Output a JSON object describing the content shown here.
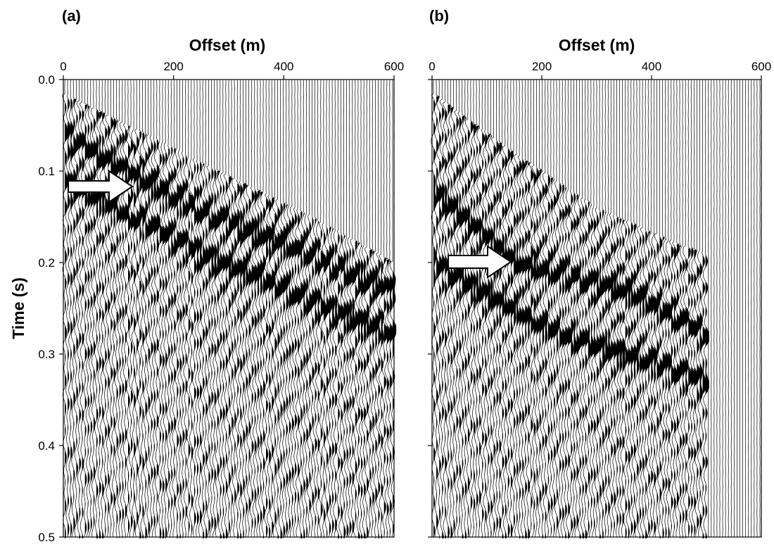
{
  "chart_data": [
    {
      "type": "heatmap",
      "panel_label": "(a)",
      "title": "",
      "xlabel": "Offset (m)",
      "ylabel": "Time (s)",
      "xlim": [
        0,
        600
      ],
      "ylim": [
        0.5,
        0.0
      ],
      "xticks": [
        "0",
        "200",
        "400",
        "600"
      ],
      "yticks": [
        "0.0",
        "0.1",
        "0.2",
        "0.3",
        "0.4",
        "0.5"
      ],
      "max_offset_with_data": 600,
      "first_break_time_s": {
        "offset_m": [
          0,
          150,
          300,
          450,
          600
        ],
        "time_s": [
          0.015,
          0.06,
          0.105,
          0.15,
          0.2
        ]
      },
      "dominant_events": [
        {
          "offset_m": [
            0,
            200,
            600
          ],
          "time_s": [
            0.06,
            0.13,
            0.23
          ]
        },
        {
          "offset_m": [
            0,
            250,
            600
          ],
          "time_s": [
            0.11,
            0.19,
            0.28
          ]
        }
      ],
      "annotation": {
        "type": "arrow",
        "points_at_offset_m": 125,
        "points_at_time_s": 0.12
      },
      "colors": {
        "wiggle": "#000000",
        "background": "#ffffff"
      }
    },
    {
      "type": "heatmap",
      "panel_label": "(b)",
      "title": "",
      "xlabel": "Offset (m)",
      "ylabel": "",
      "xlim": [
        0,
        600
      ],
      "ylim": [
        0.5,
        0.0
      ],
      "xticks": [
        "0",
        "200",
        "400",
        "600"
      ],
      "yticks": [],
      "max_offset_with_data": 500,
      "first_break_time_s": {
        "offset_m": [
          0,
          150,
          300,
          450,
          500
        ],
        "time_s": [
          0.015,
          0.08,
          0.14,
          0.18,
          0.19
        ]
      },
      "dominant_events": [
        {
          "offset_m": [
            0,
            150,
            350,
            500
          ],
          "time_s": [
            0.12,
            0.2,
            0.23,
            0.28
          ]
        },
        {
          "offset_m": [
            0,
            200,
            500
          ],
          "time_s": [
            0.2,
            0.27,
            0.33
          ]
        }
      ],
      "annotation": {
        "type": "arrow",
        "points_at_offset_m": 145,
        "points_at_time_s": 0.205
      },
      "colors": {
        "wiggle": "#000000",
        "background": "#ffffff"
      }
    }
  ]
}
